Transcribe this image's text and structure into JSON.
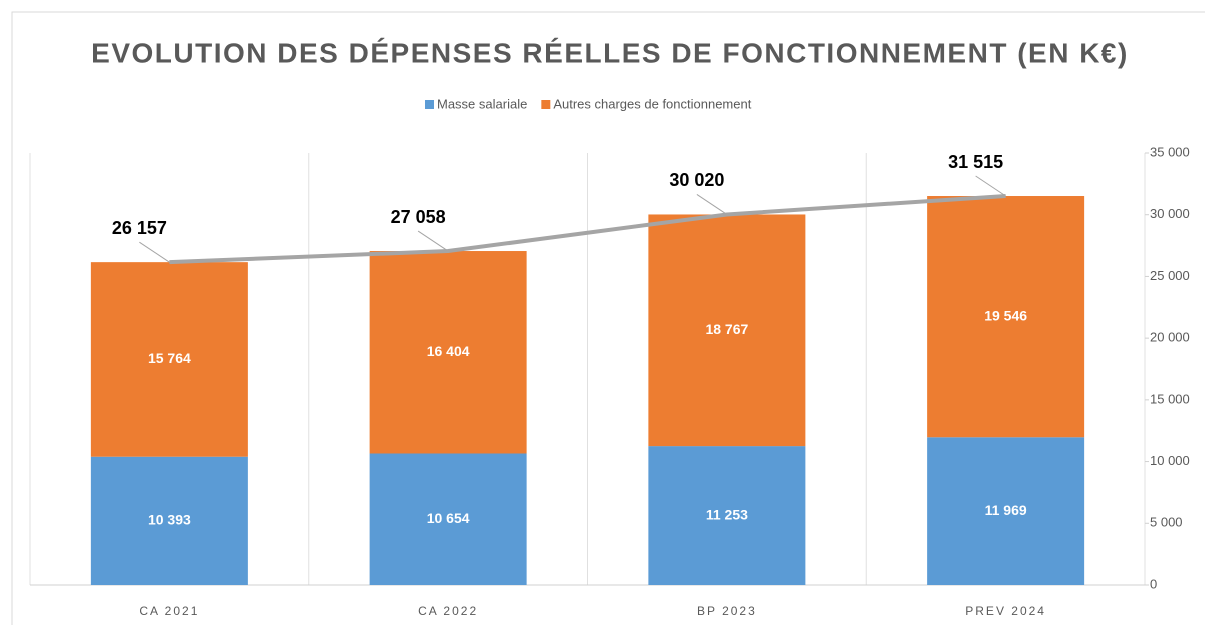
{
  "chart_data": {
    "type": "stacked_bar_line",
    "title": "EVOLUTION DES DÉPENSES RÉELLES DE FONCTIONNEMENT (EN K€)",
    "categories": [
      "CA 2021",
      "CA 2022",
      "BP 2023",
      "PREV 2024"
    ],
    "series": [
      {
        "name": "Masse salariale",
        "color": "#5b9bd5",
        "values": [
          10393,
          10654,
          11253,
          11969
        ],
        "value_labels": [
          "10 393",
          "10 654",
          "11 253",
          "11 969"
        ]
      },
      {
        "name": "Autres charges de fonctionnement",
        "color": "#ed7d31",
        "values": [
          15764,
          16404,
          18767,
          19546
        ],
        "value_labels": [
          "15 764",
          "16 404",
          "18 767",
          "19 546"
        ]
      }
    ],
    "line": {
      "color": "#a5a5a5",
      "values": [
        26157,
        27058,
        30020,
        31515
      ],
      "value_labels": [
        "26 157",
        "27 058",
        "30 020",
        "31 515"
      ]
    },
    "ylim": [
      0,
      35000
    ],
    "yticks": [
      0,
      {
        "value": 5000,
        "label": "5 000"
      },
      {
        "value": 10000,
        "label": "10 000"
      },
      {
        "value": 15000,
        "label": "15 000"
      },
      {
        "value": 20000,
        "label": "20 000"
      },
      {
        "value": 25000,
        "label": "25 000"
      },
      {
        "value": 30000,
        "label": "30 000"
      },
      {
        "value": 35000,
        "label": "35 000"
      }
    ],
    "legend": "top"
  }
}
